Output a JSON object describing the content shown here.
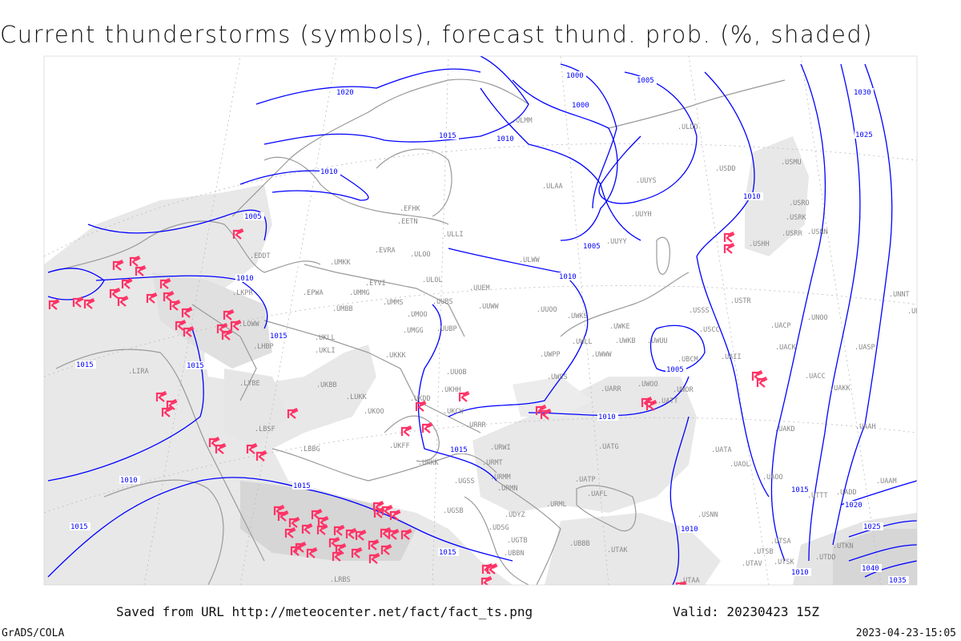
{
  "title": "Current thunderstorms (symbols), forecast thund. prob. (%, shaded)",
  "footer": {
    "saved_from": "Saved from URL http://meteocenter.net/fact/fact_ts.png",
    "valid": "Valid: 20230423 15Z",
    "software": "GrADS/COLA",
    "generated": "2023-04-23-15:05"
  },
  "colors": {
    "isobar": "#0000ff",
    "coastline": "#999999",
    "shading_light": "#e6e6e6",
    "shading_dark": "#d2d2d2",
    "thunderstorm_symbol": "#ff3366"
  },
  "legend": {
    "symbol_icon": "thunderstorm-icon"
  },
  "isobar_labels": [
    "1020",
    "1015",
    "1010",
    "1005",
    "1010",
    "1000",
    "1005",
    "1000",
    "1005",
    "1010",
    "1030",
    "1025",
    "1010",
    "1015",
    "1015",
    "1015",
    "1010",
    "1015",
    "1015",
    "1005",
    "1010",
    "1010",
    "1015",
    "1015",
    "1010",
    "1020",
    "1025",
    "1040",
    "1035",
    "1015",
    "1010"
  ],
  "stations": [
    "EDDT",
    "LKPR",
    "LOWW",
    "LHBP",
    "LIRA",
    "LYBE",
    "LBSF",
    "LUKK",
    "EPWA",
    "UMBB",
    "UMMG",
    "EYVI",
    "EVRA",
    "UMKK",
    "ULOO",
    "ULOL",
    "EETN",
    "EFHK",
    "ULLI",
    "UMMS",
    "UMOO",
    "UUBS",
    "UMGG",
    "UUBP",
    "UKLL",
    "UKLI",
    "UKKK",
    "UUEM",
    "UUWW",
    "UUOO",
    "UWKS",
    "UWPP",
    "UWKE",
    "UWKB",
    "UWUU",
    "UWLL",
    "UWWW",
    "ULAA",
    "ULWW",
    "ULMM",
    "ULDD",
    "UUYS",
    "UUYH",
    "UUYY",
    "USDD",
    "USSS",
    "USCC",
    "UUOB",
    "UKHH",
    "UKOO",
    "UKDD",
    "UKCW",
    "URRR",
    "UKFF",
    "URKK",
    "UWSS",
    "UWOO",
    "UARR",
    "UATT",
    "UWOR",
    "UBCM",
    "UAII",
    "USTR",
    "USHH",
    "USRR",
    "USNN",
    "USRK",
    "USRO",
    "USMU",
    "UNNT",
    "UNBB",
    "UNOO",
    "UACP",
    "UACK",
    "UASP",
    "UACC",
    "UAKK",
    "UAKD",
    "UAAH",
    "URWI",
    "UATG",
    "URMT",
    "URMM",
    "URMN",
    "UGSS",
    "UGSB",
    "UAFL",
    "UATP",
    "UATA",
    "UAOL",
    "UAOO",
    "UDSG",
    "UBBB",
    "UTAK",
    "UBBN",
    "UTAA",
    "UTSA",
    "UTSB",
    "UTAV",
    "UTSK",
    "UTDD",
    "UTTT",
    "UTKN",
    "UADD",
    "UAAM",
    "LRBS",
    "LBBG",
    "URML",
    "UDYZ",
    "UKBB",
    "UGTB",
    "USNN"
  ]
}
